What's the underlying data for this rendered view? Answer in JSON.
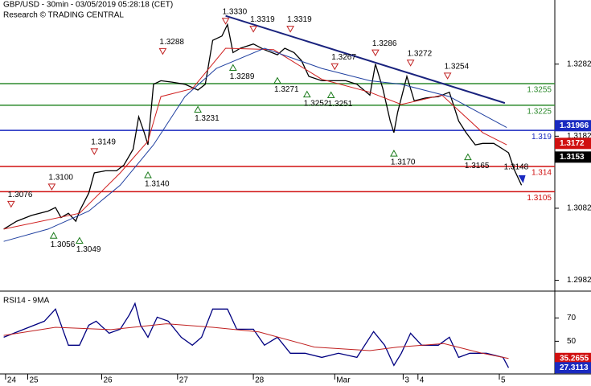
{
  "header": {
    "title": "GBP/USD - 30min - 03/05/2019 05:28:18 (CET)",
    "subtitle": "Research © TRADING CENTRAL"
  },
  "chart_data": [
    {
      "type": "line",
      "xlim": [
        0,
        300
      ],
      "ylim": [
        1.2967,
        1.3371
      ],
      "yticks": [
        1.2982,
        1.3082,
        1.3182,
        1.3282
      ],
      "series": [
        {
          "color": "#000000",
          "x": [
            2,
            9,
            17,
            26,
            30,
            33,
            37,
            41,
            43,
            48,
            51,
            57,
            63,
            67,
            72,
            75,
            78,
            80,
            83,
            87,
            93,
            100,
            107,
            111,
            115,
            120,
            123,
            126,
            130,
            137,
            143,
            150,
            154,
            159,
            163,
            167,
            174,
            180,
            187,
            193,
            200,
            203,
            207,
            211,
            213,
            215,
            220,
            224,
            230,
            237,
            243,
            248,
            252,
            257,
            261,
            267,
            272,
            275,
            278,
            282
          ],
          "values": [
            1.3053,
            1.3064,
            1.3072,
            1.3078,
            1.3083,
            1.3069,
            1.3075,
            1.3064,
            1.3078,
            1.3103,
            1.3131,
            1.3134,
            1.3134,
            1.3142,
            1.3164,
            1.3209,
            1.3187,
            1.317,
            1.3254,
            1.3259,
            1.3257,
            1.3254,
            1.3246,
            1.3254,
            1.3315,
            1.3321,
            1.3337,
            1.3298,
            1.3304,
            1.331,
            1.3302,
            1.3295,
            1.3304,
            1.3298,
            1.3287,
            1.3265,
            1.3259,
            1.3259,
            1.3259,
            1.3254,
            1.3239,
            1.3282,
            1.3248,
            1.3203,
            1.3187,
            1.3215,
            1.3265,
            1.3231,
            1.3235,
            1.3237,
            1.3243,
            1.3203,
            1.3187,
            1.317,
            1.3172,
            1.3172,
            1.3164,
            1.3159,
            1.3136,
            1.3114
          ]
        },
        {
          "color": "#d02020",
          "x": [
            2,
            43,
            65,
            80,
            87,
            104,
            122,
            148,
            174,
            200,
            217,
            239,
            261,
            274
          ],
          "values": [
            1.3053,
            1.3075,
            1.3131,
            1.3175,
            1.3237,
            1.3248,
            1.3304,
            1.3302,
            1.3261,
            1.3243,
            1.3226,
            1.3239,
            1.3187,
            1.317
          ]
        },
        {
          "color": "#2040a0",
          "x": [
            2,
            26,
            48,
            65,
            83,
            100,
            117,
            143,
            174,
            200,
            217,
            243,
            274
          ],
          "values": [
            1.3036,
            1.3053,
            1.3078,
            1.3114,
            1.317,
            1.3237,
            1.3276,
            1.3304,
            1.3276,
            1.3259,
            1.3254,
            1.3237,
            1.3194
          ]
        }
      ],
      "levels": [
        {
          "value": 1.3255,
          "label": "1.3255",
          "color": "#2e8b2e"
        },
        {
          "value": 1.3225,
          "label": "1.3225",
          "color": "#2e8b2e"
        },
        {
          "value": 1.319,
          "label": "1.319",
          "color": "#1a2ac0"
        },
        {
          "value": 1.314,
          "label": "1.314",
          "color": "#d01010"
        },
        {
          "value": 1.3105,
          "label": "1.3105",
          "color": "#d01010"
        }
      ],
      "trendline": {
        "from": [
          122,
          1.3349
        ],
        "to": [
          273,
          1.3228
        ],
        "color": "#1a237e"
      },
      "annotations": [
        {
          "x": 6,
          "value": 1.3076,
          "label": "1.3076",
          "kind": "high"
        },
        {
          "x": 28,
          "value": 1.31,
          "label": "1.3100",
          "kind": "high"
        },
        {
          "x": 29,
          "value": 1.3056,
          "label": "1.3056",
          "kind": "low"
        },
        {
          "x": 43,
          "value": 1.3049,
          "label": "1.3049",
          "kind": "low"
        },
        {
          "x": 51,
          "value": 1.3149,
          "label": "1.3149",
          "kind": "high"
        },
        {
          "x": 80,
          "value": 1.314,
          "label": "1.3140",
          "kind": "low"
        },
        {
          "x": 88,
          "value": 1.3288,
          "label": "1.3288",
          "kind": "high"
        },
        {
          "x": 107,
          "value": 1.3231,
          "label": "1.3231",
          "kind": "low"
        },
        {
          "x": 122,
          "value": 1.333,
          "label": "1.3330",
          "kind": "high"
        },
        {
          "x": 126,
          "value": 1.3289,
          "label": "1.3289",
          "kind": "low"
        },
        {
          "x": 137,
          "value": 1.3319,
          "label": "1.3319",
          "kind": "high"
        },
        {
          "x": 150,
          "value": 1.3271,
          "label": "1.3271",
          "kind": "low"
        },
        {
          "x": 157,
          "value": 1.3319,
          "label": "1.3319",
          "kind": "high"
        },
        {
          "x": 166,
          "value": 1.3252,
          "label": "1.3252",
          "kind": "low"
        },
        {
          "x": 179,
          "value": 1.3251,
          "label": "1.3251",
          "kind": "low"
        },
        {
          "x": 181,
          "value": 1.3267,
          "label": "1.3267",
          "kind": "high"
        },
        {
          "x": 203,
          "value": 1.3286,
          "label": "1.3286",
          "kind": "high"
        },
        {
          "x": 213,
          "value": 1.317,
          "label": "1.3170",
          "kind": "low"
        },
        {
          "x": 222,
          "value": 1.3272,
          "label": "1.3272",
          "kind": "high"
        },
        {
          "x": 242,
          "value": 1.3254,
          "label": "1.3254",
          "kind": "high"
        },
        {
          "x": 253,
          "value": 1.3165,
          "label": "1.3165",
          "kind": "low"
        },
        {
          "x": 282,
          "value": 1.3148,
          "label": "1.3148",
          "kind": "end"
        }
      ],
      "price_tags": [
        {
          "value": 1.31966,
          "color": "#1a2ac0"
        },
        {
          "value": 1.3172,
          "color": "#d01010"
        },
        {
          "value": 1.3153,
          "color": "#000000"
        }
      ]
    },
    {
      "type": "line",
      "title": "RSI14 - 9MA",
      "xlim": [
        0,
        300
      ],
      "ylim": [
        22,
        93
      ],
      "yticks": [
        50,
        70
      ],
      "xticks": [
        {
          "value": 3,
          "label": "24"
        },
        {
          "value": 15,
          "label": "25"
        },
        {
          "value": 55,
          "label": "26"
        },
        {
          "value": 96,
          "label": "27"
        },
        {
          "value": 137,
          "label": "28"
        },
        {
          "value": 181,
          "label": "Mar"
        },
        {
          "value": 218,
          "label": "3"
        },
        {
          "value": 226,
          "label": "4"
        },
        {
          "value": 270,
          "label": "5"
        }
      ],
      "series": [
        {
          "color": "#000080",
          "x": [
            2,
            13,
            24,
            30,
            37,
            43,
            48,
            52,
            59,
            65,
            70,
            73,
            76,
            80,
            85,
            91,
            98,
            104,
            109,
            115,
            123,
            128,
            137,
            143,
            150,
            157,
            165,
            174,
            183,
            193,
            202,
            208,
            213,
            217,
            222,
            228,
            237,
            243,
            248,
            254,
            263,
            272,
            275
          ],
          "values": [
            53.4,
            60.3,
            67.2,
            77.6,
            46.6,
            46.6,
            63.8,
            67.2,
            56.9,
            60.3,
            72.8,
            82.4,
            63.8,
            53.4,
            70.7,
            67.2,
            53.4,
            46.6,
            53.4,
            77.6,
            77.6,
            60.3,
            60.3,
            46.6,
            53.4,
            39.7,
            39.7,
            36.2,
            39.7,
            36.2,
            58.3,
            46.6,
            29.3,
            39.7,
            56.9,
            46.6,
            46.6,
            53.4,
            36.2,
            39.7,
            39.7,
            36.2,
            27.3
          ]
        },
        {
          "color": "#c02020",
          "x": [
            2,
            30,
            60,
            90,
            115,
            140,
            170,
            200,
            215,
            240,
            260,
            275
          ],
          "values": [
            55,
            62,
            60,
            65,
            62,
            58,
            45,
            42,
            45,
            48,
            40,
            35.3
          ]
        }
      ],
      "price_tags": [
        {
          "value": 35.2655,
          "color": "#d01010"
        },
        {
          "value": 27.3113,
          "color": "#1a2ac0"
        }
      ]
    }
  ]
}
